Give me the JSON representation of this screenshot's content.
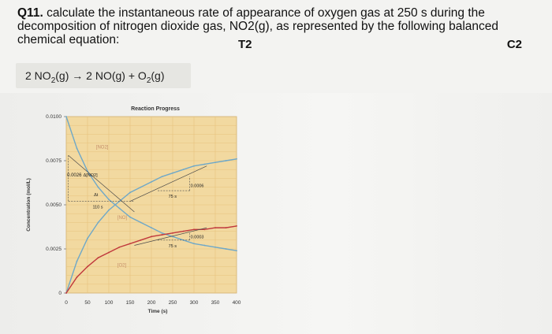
{
  "question": {
    "number": "Q11.",
    "text": "calculate the instantaneous rate of appearance of oxygen gas at 250 s during the decomposition of nitrogen dioxide gas, NO2(g), as represented by the following balanced chemical equation:",
    "tag_topic": "T2",
    "tag_competency": "C2"
  },
  "equation": {
    "reactant_coef": "2 NO",
    "reactant_sub": "2",
    "reactant_state": "(g)",
    "arrow": "→",
    "product1": "2 NO(g)",
    "plus": "+",
    "product2": "O",
    "product2_sub": "2",
    "product2_state": "(g)"
  },
  "chart_data": {
    "type": "line",
    "title": "Reaction Progress",
    "xlabel": "Time (s)",
    "ylabel": "Concentration (mol/L)",
    "xlim": [
      0,
      400
    ],
    "ylim": [
      0,
      0.01
    ],
    "x_ticks": [
      "0",
      "50",
      "100",
      "150",
      "200",
      "250",
      "300",
      "350",
      "400"
    ],
    "y_ticks": [
      "0",
      "0.0025",
      "0.0050",
      "0.0075",
      "0.0100"
    ],
    "y_tick_values": [
      0,
      0.0025,
      0.005,
      0.0075,
      0.01
    ],
    "x_tick_values": [
      0,
      50,
      100,
      150,
      200,
      250,
      300,
      350,
      400
    ],
    "series": [
      {
        "name": "[NO2]",
        "color": "#6fa8c8",
        "x": [
          0,
          25,
          50,
          75,
          100,
          125,
          150,
          175,
          200,
          225,
          250,
          275,
          300,
          325,
          350,
          375,
          400
        ],
        "y": [
          0.01,
          0.0082,
          0.0069,
          0.006,
          0.0053,
          0.0048,
          0.0043,
          0.004,
          0.0037,
          0.0034,
          0.0032,
          0.003,
          0.0028,
          0.0027,
          0.0026,
          0.0025,
          0.0024
        ]
      },
      {
        "name": "[NO]",
        "color": "#6fa8c8",
        "x": [
          0,
          25,
          50,
          75,
          100,
          125,
          150,
          175,
          200,
          225,
          250,
          275,
          300,
          325,
          350,
          375,
          400
        ],
        "y": [
          0,
          0.0018,
          0.0031,
          0.004,
          0.0047,
          0.0052,
          0.0057,
          0.006,
          0.0063,
          0.0066,
          0.0068,
          0.007,
          0.0072,
          0.0073,
          0.0074,
          0.0075,
          0.0076
        ]
      },
      {
        "name": "[O2]",
        "color": "#c0383c",
        "x": [
          0,
          25,
          50,
          75,
          100,
          125,
          150,
          175,
          200,
          225,
          250,
          275,
          300,
          325,
          350,
          375,
          400
        ],
        "y": [
          0,
          0.0009,
          0.0015,
          0.002,
          0.0023,
          0.0026,
          0.0028,
          0.003,
          0.0032,
          0.0033,
          0.0034,
          0.0035,
          0.0036,
          0.0036,
          0.0037,
          0.0037,
          0.0038
        ]
      }
    ],
    "annotations": {
      "delta_no2_value": "0.0026",
      "delta_no2_label": "Δ[NO2]",
      "delta_t_label": "Δt",
      "delta_t_value": "110 s",
      "tangent_no_dy": "0.0006",
      "tangent_no_dx": "75 s",
      "tangent_o2_dy": "0.0003",
      "tangent_o2_dx": "75 s",
      "label_no2": "[NO2]",
      "label_no": "[NO]",
      "label_o2": "[O2]"
    }
  }
}
